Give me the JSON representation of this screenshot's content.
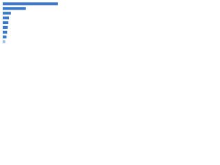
{
  "chart_data": {
    "type": "hbar",
    "categories": [
      null,
      null,
      null,
      null,
      null,
      null,
      null,
      null,
      null
    ],
    "values": [
      88,
      37,
      13,
      10,
      9,
      8,
      7,
      6,
      4
    ],
    "colors": [
      "#3a78c9",
      "#3a78c9",
      "#3a78c9",
      "#3a78c9",
      "#3a78c9",
      "#3a78c9",
      "#3a78c9",
      "#3a78c9",
      "#9bbbe3"
    ],
    "xlim": [
      0,
      100
    ]
  }
}
